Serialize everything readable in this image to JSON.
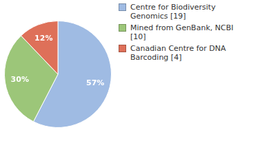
{
  "chart_data": {
    "type": "pie",
    "categories": [
      "Centre for Biodiversity Genomics [19]",
      "Mined from GenBank, NCBI [10]",
      "Canadian Centre for DNA Barcoding [4]"
    ],
    "values": [
      57,
      30,
      12
    ],
    "value_labels": [
      "57%",
      "30%",
      "12%"
    ],
    "colors": [
      "#9fbbe3",
      "#9cc679",
      "#de7059"
    ],
    "legend": "top-right",
    "data_labels": true
  }
}
